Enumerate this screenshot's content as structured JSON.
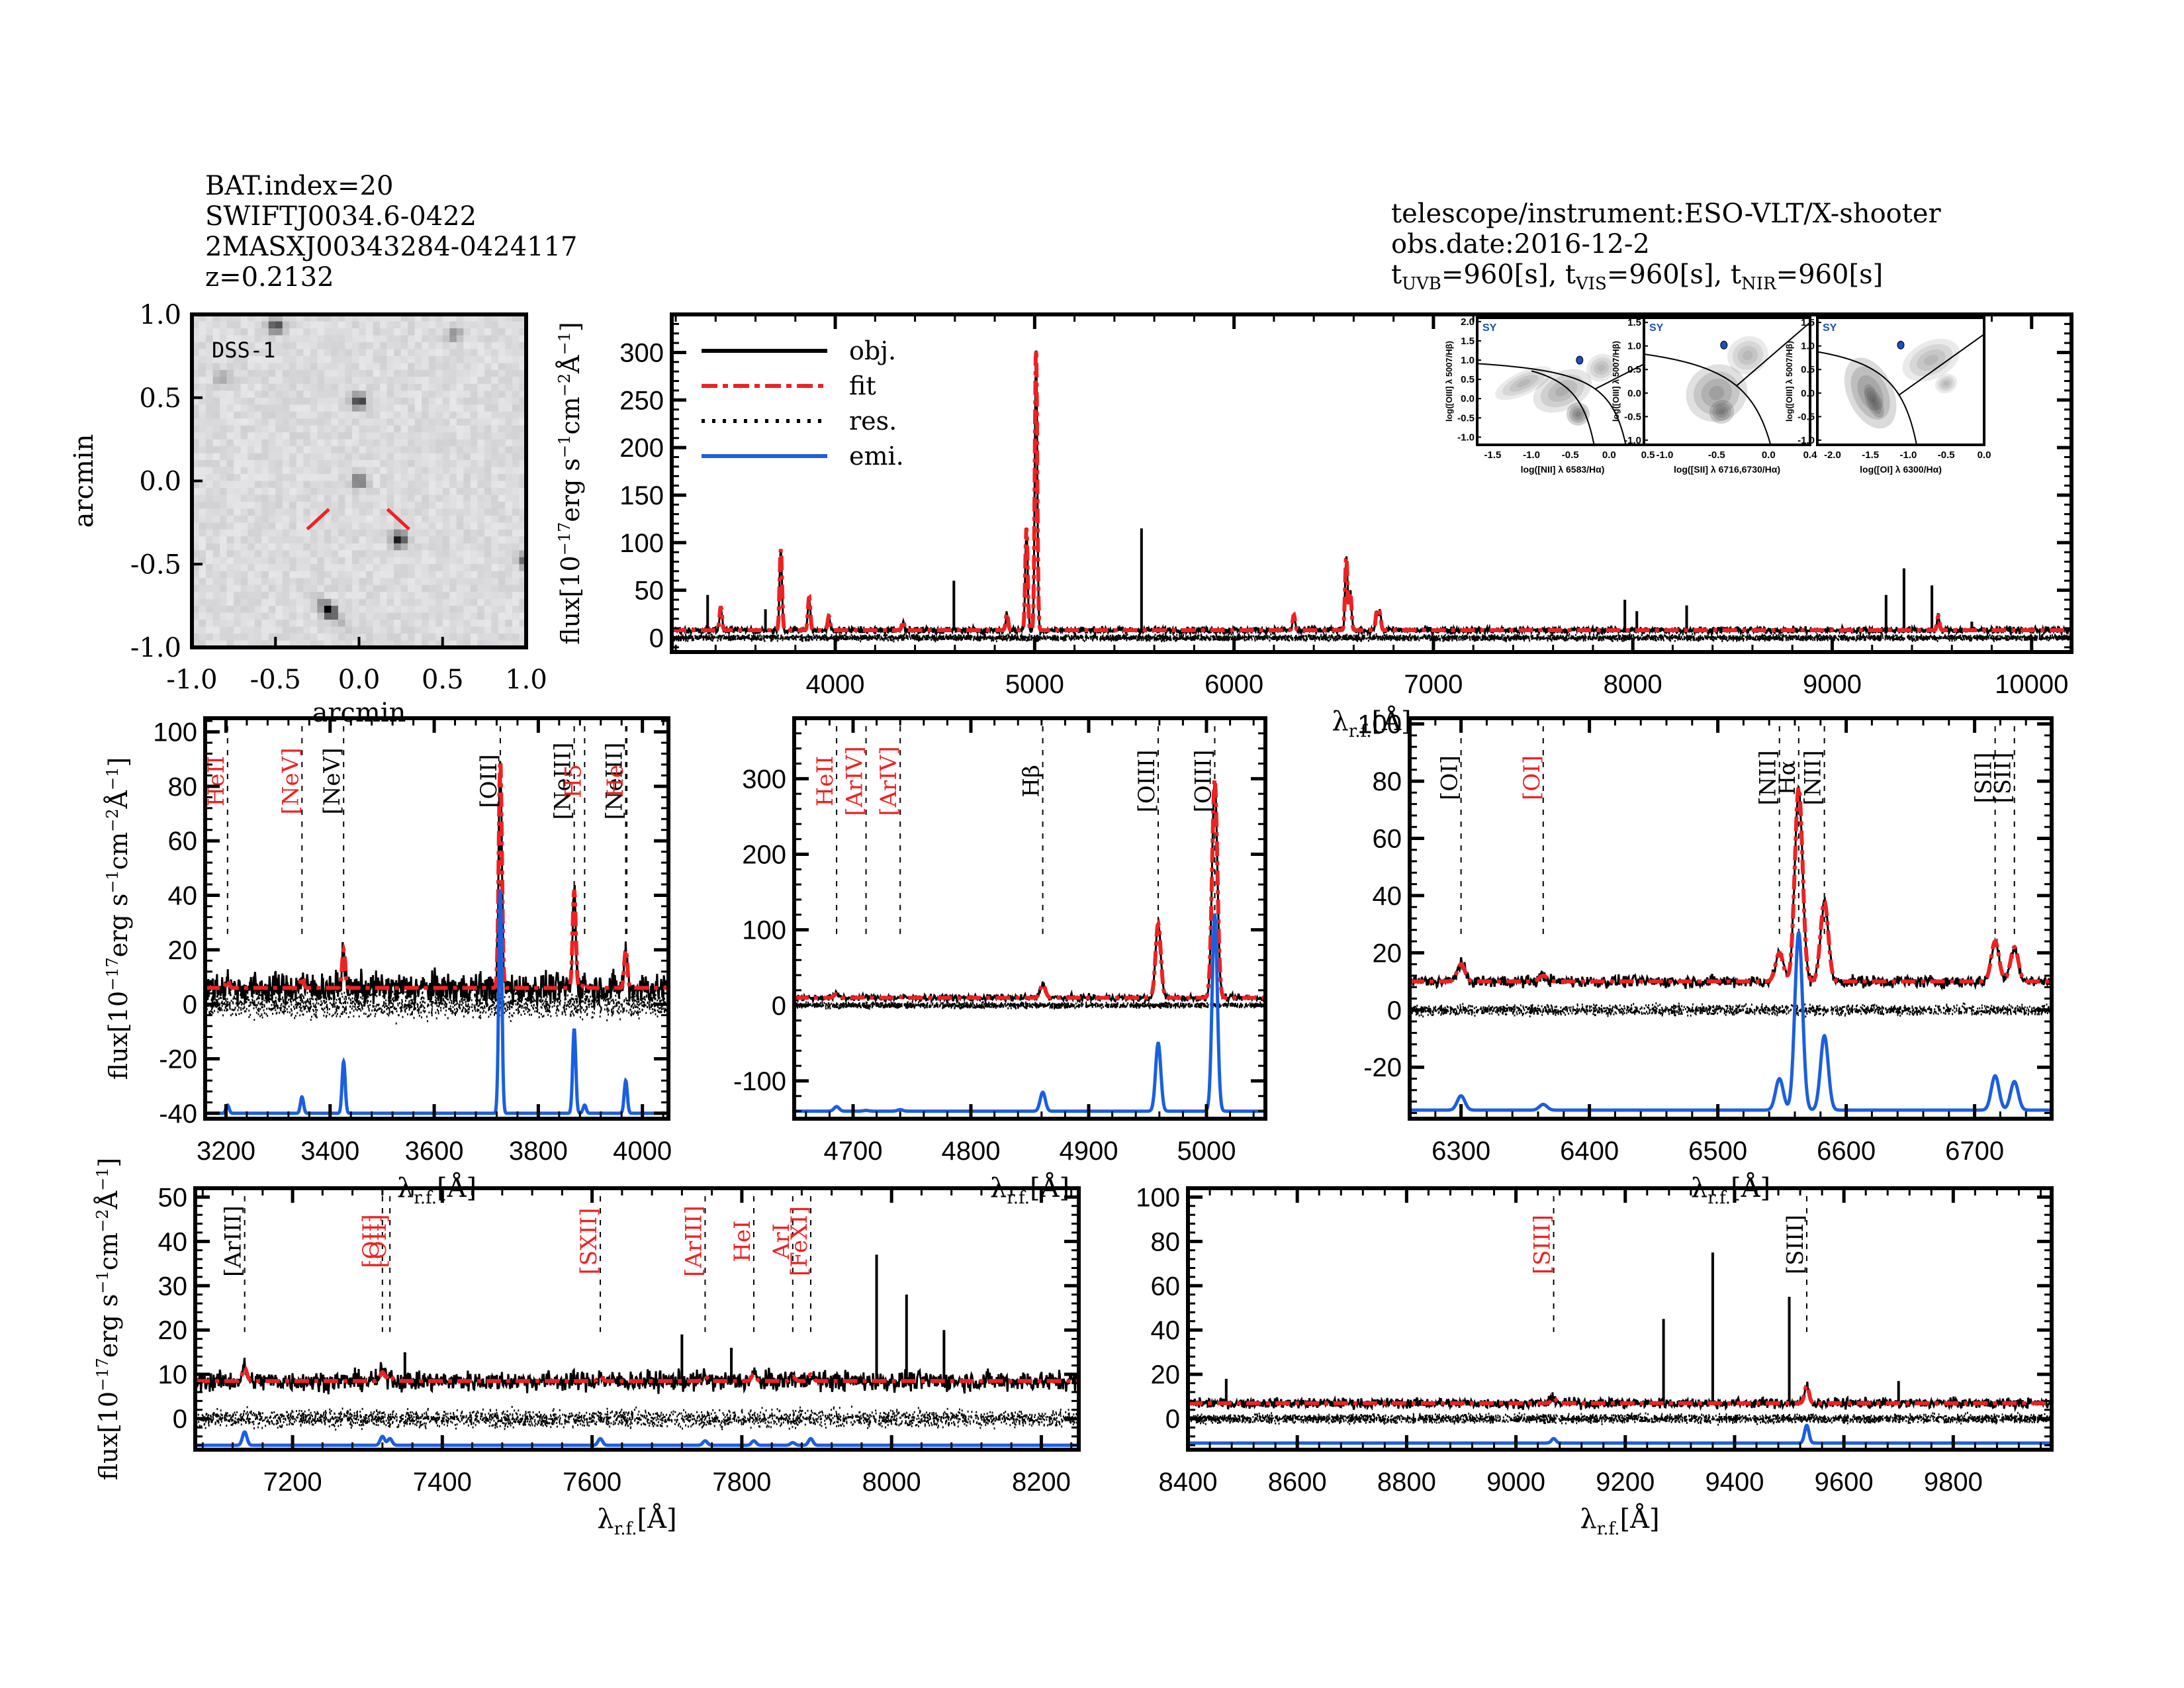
{
  "header_left": {
    "bat_index": "BAT.index=20",
    "swift_name": "SWIFTJ0034.6-0422",
    "counterpart": "2MASXJ00343284-0424117",
    "redshift": "z=0.2132"
  },
  "header_right": {
    "instrument": "telescope/instrument:ESO-VLT/X-shooter",
    "obs_date": "obs.date:2016-12-2",
    "exptime_uvb_label": "t",
    "exptime_uvb_sub": "UVB",
    "exptime_uvb_value": "=960[s],",
    "exptime_vis_sub": "VIS",
    "exptime_vis_value": "=960[s],",
    "exptime_nir_sub": "NIR",
    "exptime_nir_value": "=960[s]"
  },
  "colors": {
    "obj": "#000000",
    "fit": "#ee2222",
    "res": "#000000",
    "emi": "#1a5fe0",
    "label_black": "#000000",
    "label_red": "#ee2222",
    "bpt_point": "#1a4fc0"
  },
  "chart_data": [
    {
      "id": "dss",
      "type": "heatmap",
      "title": "DSS-1",
      "xlabel": "arcmin",
      "ylabel": "arcmin",
      "xlim": [
        -1.0,
        1.0
      ],
      "ylim": [
        -1.0,
        1.0
      ],
      "xticks": [
        "-1.0",
        "-0.5",
        "0.0",
        "0.5",
        "1.0"
      ],
      "yticks": [
        "-1.0",
        "-0.5",
        "0.0",
        "0.5",
        "1.0"
      ],
      "sources": [
        {
          "x": -0.5,
          "y": 0.93,
          "strength": 0.8
        },
        {
          "x": 0.0,
          "y": 0.48,
          "strength": 0.85
        },
        {
          "x": 0.0,
          "y": 0.0,
          "strength": 0.6
        },
        {
          "x": 0.24,
          "y": -0.35,
          "strength": 1.0
        },
        {
          "x": 1.0,
          "y": -0.48,
          "strength": 0.7
        },
        {
          "x": -0.18,
          "y": -0.78,
          "strength": 0.7
        },
        {
          "x": 0.57,
          "y": 0.88,
          "strength": 0.35
        },
        {
          "x": -0.82,
          "y": 0.62,
          "strength": 0.3
        }
      ],
      "marker_color": "#ee2222"
    },
    {
      "id": "full",
      "type": "line",
      "xlabel": "λr.f.[Å]",
      "ylabel": "flux[10^-17 erg s^-1 cm^-2 Å^-1]",
      "xlim": [
        3180,
        10200
      ],
      "ylim": [
        -15,
        340
      ],
      "xticks": [
        4000,
        5000,
        6000,
        7000,
        8000,
        9000,
        10000
      ],
      "yticks": [
        0,
        50,
        100,
        150,
        200,
        250,
        300
      ],
      "legend": [
        {
          "label": "obj.",
          "style": "solid",
          "color": "#000000"
        },
        {
          "label": "fit",
          "style": "dashdot",
          "color": "#ee2222"
        },
        {
          "label": "res.",
          "style": "dotted",
          "color": "#000000"
        },
        {
          "label": "emi.",
          "style": "solid",
          "color": "#1a5fe0"
        }
      ],
      "legend_position": "top-left",
      "continuum": 8,
      "lines": [
        {
          "x": 3426,
          "peak": 25
        },
        {
          "x": 3727,
          "peak": 85
        },
        {
          "x": 3869,
          "peak": 35
        },
        {
          "x": 3968,
          "peak": 15
        },
        {
          "x": 4340,
          "peak": 10
        },
        {
          "x": 4861,
          "peak": 18
        },
        {
          "x": 4959,
          "peak": 108
        },
        {
          "x": 5007,
          "peak": 300
        },
        {
          "x": 6300,
          "peak": 16
        },
        {
          "x": 6563,
          "peak": 78
        },
        {
          "x": 6583,
          "peak": 40
        },
        {
          "x": 6716,
          "peak": 20
        },
        {
          "x": 6731,
          "peak": 18
        },
        {
          "x": 9532,
          "peak": 15
        }
      ],
      "spikes": [
        {
          "x": 3360,
          "peak": 45
        },
        {
          "x": 3650,
          "peak": 30
        },
        {
          "x": 4595,
          "peak": 60
        },
        {
          "x": 5536,
          "peak": 115
        },
        {
          "x": 7960,
          "peak": 40
        },
        {
          "x": 8020,
          "peak": 28
        },
        {
          "x": 8270,
          "peak": 34
        },
        {
          "x": 9270,
          "peak": 45
        },
        {
          "x": 9360,
          "peak": 73
        },
        {
          "x": 9500,
          "peak": 55
        },
        {
          "x": 9700,
          "peak": 17
        }
      ]
    },
    {
      "id": "zoom_oii",
      "type": "line",
      "xlabel": "λr.f.[Å]",
      "ylabel": "flux[10^-17 erg s^-1 cm^-2 Å^-1]",
      "xlim": [
        3160,
        4050
      ],
      "ylim": [
        -42,
        105
      ],
      "xticks": [
        3200,
        3400,
        3600,
        3800,
        4000
      ],
      "yticks": [
        -40,
        -20,
        0,
        20,
        40,
        60,
        80,
        100
      ],
      "continuum": 6,
      "emi_base": -40,
      "line_labels": [
        {
          "x": 3203,
          "label": "HeII",
          "color": "red"
        },
        {
          "x": 3346,
          "label": "[NeV]",
          "color": "red"
        },
        {
          "x": 3426,
          "label": "[NeV]",
          "color": "black"
        },
        {
          "x": 3727,
          "label": "[OII]",
          "color": "black"
        },
        {
          "x": 3869,
          "label": "[NeIII]",
          "color": "black"
        },
        {
          "x": 3889,
          "label": "H5",
          "color": "red"
        },
        {
          "x": 3968,
          "label": "[NeIII]",
          "color": "black"
        },
        {
          "x": 3970,
          "label": "He",
          "color": "red"
        }
      ],
      "lines": [
        {
          "x": 3203,
          "peak": 3,
          "emi": 3
        },
        {
          "x": 3346,
          "peak": 4,
          "emi": 6
        },
        {
          "x": 3426,
          "peak": 14,
          "emi": 19
        },
        {
          "x": 3727,
          "peak": 84,
          "emi": 82
        },
        {
          "x": 3869,
          "peak": 36,
          "emi": 31
        },
        {
          "x": 3889,
          "peak": 2,
          "emi": 3
        },
        {
          "x": 3968,
          "peak": 14,
          "emi": 12
        }
      ]
    },
    {
      "id": "zoom_oiii",
      "type": "line",
      "xlabel": "λr.f.[Å]",
      "ylabel": "",
      "xlim": [
        4650,
        5050
      ],
      "ylim": [
        -150,
        380
      ],
      "xticks": [
        4700,
        4800,
        4900,
        5000
      ],
      "yticks": [
        -100,
        0,
        100,
        200,
        300
      ],
      "continuum": 10,
      "emi_base": -140,
      "line_labels": [
        {
          "x": 4686,
          "label": "HeII",
          "color": "red"
        },
        {
          "x": 4711,
          "label": "[ArIV]",
          "color": "red"
        },
        {
          "x": 4740,
          "label": "[ArIV]",
          "color": "red"
        },
        {
          "x": 4861,
          "label": "Hβ",
          "color": "black"
        },
        {
          "x": 4959,
          "label": "[OIII]",
          "color": "black"
        },
        {
          "x": 5007,
          "label": "[OIII]",
          "color": "black"
        }
      ],
      "lines": [
        {
          "x": 4686,
          "peak": 5,
          "emi": 6
        },
        {
          "x": 4711,
          "peak": 1,
          "emi": 1
        },
        {
          "x": 4740,
          "peak": 1,
          "emi": 2
        },
        {
          "x": 4861,
          "peak": 18,
          "emi": 25
        },
        {
          "x": 4959,
          "peak": 98,
          "emi": 90
        },
        {
          "x": 5007,
          "peak": 290,
          "emi": 260
        }
      ]
    },
    {
      "id": "zoom_halpha",
      "type": "line",
      "xlabel": "λr.f.[Å]",
      "ylabel": "",
      "xlim": [
        6260,
        6760
      ],
      "ylim": [
        -38,
        102
      ],
      "xticks": [
        6300,
        6400,
        6500,
        6600,
        6700
      ],
      "yticks": [
        -20,
        0,
        20,
        40,
        60,
        80,
        100
      ],
      "continuum": 10,
      "emi_base": -35,
      "line_labels": [
        {
          "x": 6300,
          "label": "[OI]",
          "color": "black"
        },
        {
          "x": 6364,
          "label": "[OI]",
          "color": "red"
        },
        {
          "x": 6548,
          "label": "[NII]",
          "color": "black"
        },
        {
          "x": 6563,
          "label": "Hα",
          "color": "black"
        },
        {
          "x": 6583,
          "label": "[NII]",
          "color": "black"
        },
        {
          "x": 6716,
          "label": "[SII]",
          "color": "black"
        },
        {
          "x": 6731,
          "label": "[SII]",
          "color": "black"
        }
      ],
      "lines": [
        {
          "x": 6300,
          "peak": 6,
          "emi": 5
        },
        {
          "x": 6364,
          "peak": 2,
          "emi": 2
        },
        {
          "x": 6548,
          "peak": 10,
          "emi": 11
        },
        {
          "x": 6563,
          "peak": 68,
          "emi": 62
        },
        {
          "x": 6583,
          "peak": 28,
          "emi": 26
        },
        {
          "x": 6716,
          "peak": 14,
          "emi": 12
        },
        {
          "x": 6731,
          "peak": 12,
          "emi": 10
        }
      ]
    },
    {
      "id": "zoom_red",
      "type": "line",
      "xlabel": "λr.f.[Å]",
      "ylabel": "flux[10^-17 erg s^-1 cm^-2 Å^-1]",
      "xlim": [
        7070,
        8250
      ],
      "ylim": [
        -7,
        52
      ],
      "xticks": [
        7200,
        7400,
        7600,
        7800,
        8000,
        8200
      ],
      "yticks": [
        0,
        10,
        20,
        30,
        40,
        50
      ],
      "continuum": 8.5,
      "emi_base": -6,
      "line_labels": [
        {
          "x": 7136,
          "label": "[ArIII]",
          "color": "black"
        },
        {
          "x": 7320,
          "label": "[OII]",
          "color": "red"
        },
        {
          "x": 7330,
          "label": "[OII]",
          "color": "red"
        },
        {
          "x": 7611,
          "label": "[SXII]",
          "color": "red"
        },
        {
          "x": 7751,
          "label": "[ArIII]",
          "color": "red"
        },
        {
          "x": 7816,
          "label": "HeI",
          "color": "red"
        },
        {
          "x": 7868,
          "label": "ArI",
          "color": "red"
        },
        {
          "x": 7892,
          "label": "[FeXI]",
          "color": "red"
        }
      ],
      "lines": [
        {
          "x": 7136,
          "peak": 3,
          "emi": 3
        },
        {
          "x": 7320,
          "peak": 2,
          "emi": 2
        },
        {
          "x": 7330,
          "peak": 1.5,
          "emi": 1.5
        },
        {
          "x": 7611,
          "peak": 1,
          "emi": 1.5
        },
        {
          "x": 7751,
          "peak": 1,
          "emi": 1
        },
        {
          "x": 7816,
          "peak": 1.5,
          "emi": 1
        },
        {
          "x": 7868,
          "peak": 1,
          "emi": 0.6
        },
        {
          "x": 7892,
          "peak": 1.5,
          "emi": 1.5
        }
      ],
      "spikes": [
        {
          "x": 7720,
          "peak": 19
        },
        {
          "x": 7786,
          "peak": 16
        },
        {
          "x": 7980,
          "peak": 37
        },
        {
          "x": 8020,
          "peak": 28
        },
        {
          "x": 8070,
          "peak": 20
        },
        {
          "x": 7350,
          "peak": 15
        }
      ]
    },
    {
      "id": "zoom_nir",
      "type": "line",
      "xlabel": "λr.f.[Å]",
      "ylabel": "",
      "xlim": [
        8400,
        9980
      ],
      "ylim": [
        -14,
        104
      ],
      "xticks": [
        8400,
        8600,
        8800,
        9000,
        9200,
        9400,
        9600,
        9800
      ],
      "yticks": [
        0,
        20,
        40,
        60,
        80,
        100
      ],
      "continuum": 7,
      "emi_base": -11,
      "line_labels": [
        {
          "x": 9069,
          "label": "[SIII]",
          "color": "red"
        },
        {
          "x": 9532,
          "label": "[SIII]",
          "color": "black"
        }
      ],
      "lines": [
        {
          "x": 9069,
          "peak": 2.5,
          "emi": 2
        },
        {
          "x": 9532,
          "peak": 8,
          "emi": 8
        }
      ],
      "spikes": [
        {
          "x": 8470,
          "peak": 18
        },
        {
          "x": 9270,
          "peak": 45
        },
        {
          "x": 9360,
          "peak": 75
        },
        {
          "x": 9500,
          "peak": 55
        },
        {
          "x": 9700,
          "peak": 17
        }
      ]
    },
    {
      "id": "bpt_nii",
      "type": "scatter",
      "class_label": "SY",
      "xlabel": "log([NII] λ 6583/Hα)",
      "ylabel": "log([OIII] λ 5007/Hβ)",
      "xlim": [
        -1.7,
        0.5
      ],
      "ylim": [
        -1.2,
        2.1
      ],
      "xticks": [
        "-1.5",
        "-1.0",
        "-0.5",
        "0.0",
        "0.5"
      ],
      "yticks": [
        "-1.0",
        "-0.5",
        "0.0",
        "0.5",
        "1.0",
        "1.5",
        "2.0"
      ],
      "point": {
        "x": -0.38,
        "y": 1.0
      }
    },
    {
      "id": "bpt_sii",
      "type": "scatter",
      "class_label": "SY",
      "xlabel": "log([SII] λ 6716,6730/Hα)",
      "ylabel": "log([OIII] λ 5007/Hβ)",
      "xlim": [
        -1.2,
        0.4
      ],
      "ylim": [
        -1.1,
        1.6
      ],
      "xticks": [
        "-1.0",
        "-0.5",
        "0.0",
        "0.4"
      ],
      "yticks": [
        "-1.0",
        "-0.5",
        "0.0",
        "0.5",
        "1.0",
        "1.5"
      ],
      "point": {
        "x": -0.43,
        "y": 1.02
      }
    },
    {
      "id": "bpt_oi",
      "type": "scatter",
      "class_label": "SY",
      "xlabel": "log([OI] λ 6300/Hα)",
      "ylabel": "log([OIII] λ 5007/Hβ)",
      "xlim": [
        -2.2,
        0.0
      ],
      "ylim": [
        -1.1,
        1.6
      ],
      "xticks": [
        "-2.0",
        "-1.5",
        "-1.0",
        "-0.5",
        "0.0"
      ],
      "yticks": [
        "-1.0",
        "-0.5",
        "0.0",
        "0.5",
        "1.0",
        "1.5"
      ],
      "point": {
        "x": -1.1,
        "y": 1.02
      }
    }
  ]
}
